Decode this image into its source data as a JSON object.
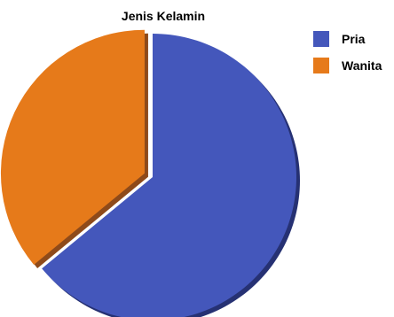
{
  "chart_data": {
    "type": "pie",
    "title": "Jenis Kelamin",
    "categories": [
      "Pria",
      "Wanita"
    ],
    "values": [
      64,
      36
    ],
    "colors": [
      "#4457BB",
      "#E67A1A"
    ],
    "shadow_colors": [
      "#263173",
      "#8E4A1A"
    ],
    "exploded": "Wanita",
    "legend_position": "right"
  }
}
